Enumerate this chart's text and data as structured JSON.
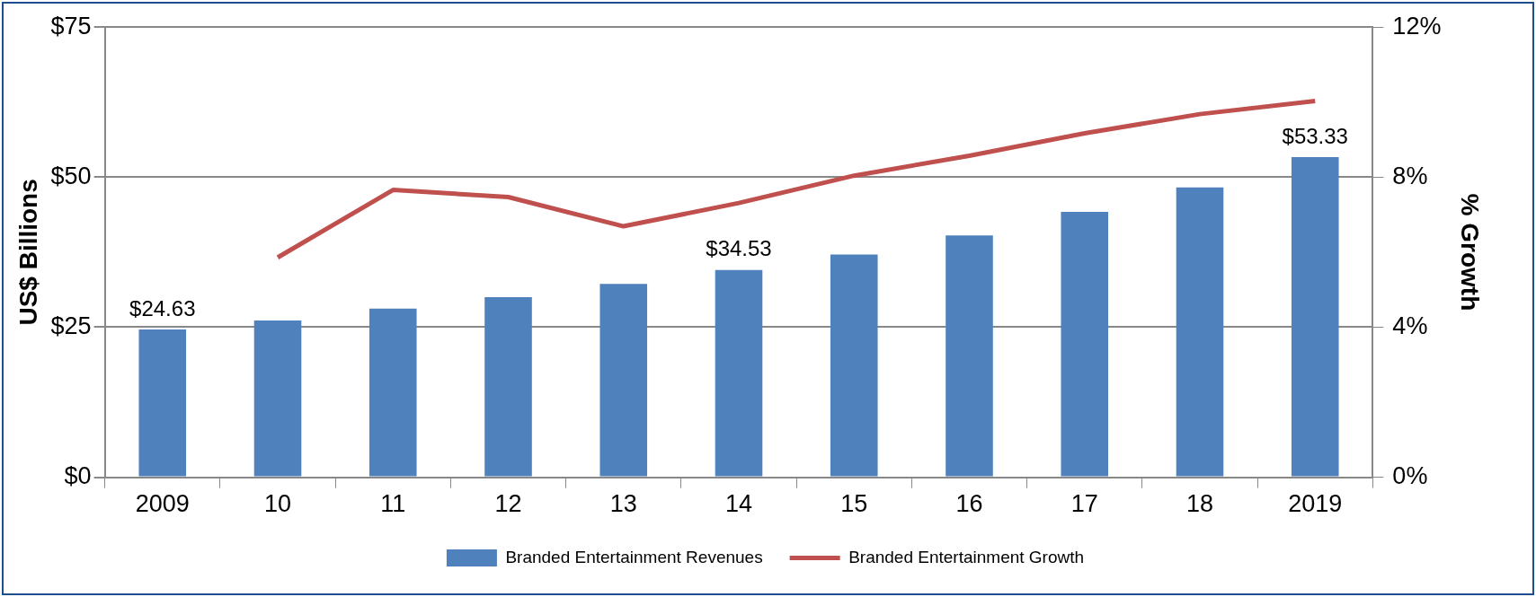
{
  "chart_data": {
    "type": "bar",
    "ylabel": "US$ Billions",
    "y2label": "% Growth",
    "categories": [
      "2009",
      "10",
      "11",
      "12",
      "13",
      "14",
      "15",
      "16",
      "17",
      "18",
      "2019"
    ],
    "series": [
      {
        "name": "Branded Entertainment Revenues",
        "color": "#4f81bd",
        "values": [
          24.63,
          26.1,
          28.1,
          30.0,
          32.2,
          34.53,
          37.1,
          40.3,
          44.2,
          48.3,
          53.33
        ],
        "value_labels": [
          "$24.63",
          null,
          null,
          null,
          null,
          "$34.53",
          null,
          null,
          null,
          null,
          "$53.33"
        ]
      },
      {
        "name": "Branded Entertainment Growth",
        "type": "line",
        "axis": "y2",
        "color": "#c0504d",
        "values": [
          null,
          5.86,
          7.66,
          7.47,
          6.69,
          7.31,
          8.04,
          8.57,
          9.17,
          9.68,
          10.03
        ]
      }
    ],
    "ylim": [
      0,
      75
    ],
    "yticks": [
      {
        "value": 0,
        "label": "$0"
      },
      {
        "value": 25,
        "label": "$25"
      },
      {
        "value": 50,
        "label": "$50"
      },
      {
        "value": 75,
        "label": "$75"
      }
    ],
    "y2lim": [
      0,
      12
    ],
    "y2ticks": [
      {
        "value": 0,
        "label": "0%"
      },
      {
        "value": 4,
        "label": "4%"
      },
      {
        "value": 8,
        "label": "8%"
      },
      {
        "value": 12,
        "label": "12%"
      }
    ],
    "grid": "y",
    "legend": "bottom",
    "marker": "none"
  }
}
